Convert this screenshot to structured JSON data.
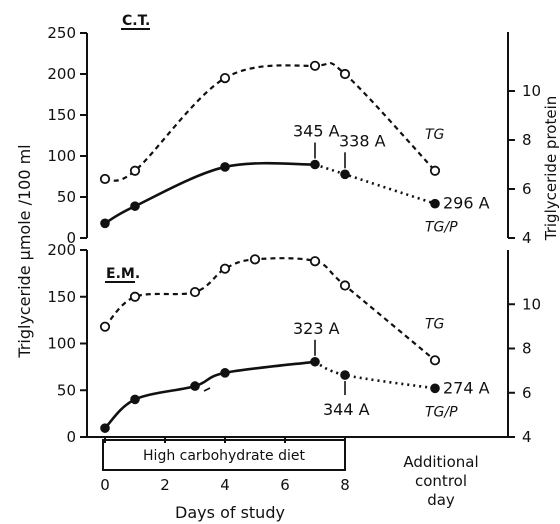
{
  "chart_data": [
    {
      "type": "line",
      "panel": "top",
      "title": "C.T.",
      "ylabel_left": "Triglyceride µmole /100 ml",
      "ylabel_right": "Triglyceride protein",
      "ylim_left": [
        0,
        250
      ],
      "yticks_left": [
        "0",
        "50",
        "100",
        "150",
        "200",
        "250"
      ],
      "ylim_right": [
        4,
        12
      ],
      "yticks_right": [
        "4",
        "6",
        "8",
        "10"
      ],
      "series": [
        {
          "name": "TG",
          "axis": "left",
          "style": "dashed-open-circles",
          "x": [
            0,
            1,
            4,
            7,
            8,
            11
          ],
          "y": [
            72,
            82,
            195,
            210,
            200,
            82
          ]
        },
        {
          "name": "TG/P",
          "axis": "right",
          "style": "solid-filled-circles",
          "x": [
            0,
            1,
            4,
            7,
            8,
            11
          ],
          "y": [
            4.6,
            5.3,
            6.9,
            7.0,
            6.6,
            5.4
          ]
        }
      ],
      "annotations": [
        {
          "text": "345 A",
          "x": 7
        },
        {
          "text": "338 A",
          "x": 8
        },
        {
          "text": "296 A",
          "x": 11
        }
      ]
    },
    {
      "type": "line",
      "panel": "bottom",
      "title": "E.M.",
      "xlabel": "Days of study",
      "xticks": [
        "0",
        "2",
        "4",
        "6",
        "8"
      ],
      "ylim_left": [
        0,
        200
      ],
      "yticks_left": [
        "0",
        "50",
        "100",
        "150",
        "200"
      ],
      "ylim_right": [
        4,
        12
      ],
      "yticks_right": [
        "4",
        "6",
        "8",
        "10"
      ],
      "series": [
        {
          "name": "TG",
          "axis": "left",
          "style": "dashed-open-circles",
          "x": [
            0,
            1,
            3,
            4,
            5,
            7,
            8,
            11
          ],
          "y": [
            118,
            150,
            155,
            180,
            190,
            188,
            162,
            82
          ]
        },
        {
          "name": "TG/P",
          "axis": "right",
          "style": "solid-filled-circles",
          "x": [
            0,
            1,
            3,
            4,
            7,
            8,
            11
          ],
          "y": [
            4.4,
            5.7,
            6.3,
            6.9,
            7.4,
            6.8,
            6.2
          ]
        }
      ],
      "annotations": [
        {
          "text": "323 A",
          "x": 7
        },
        {
          "text": "344 A",
          "x": 8
        },
        {
          "text": "274 A",
          "x": 11
        }
      ],
      "diet_label": "High carbohydrate diet",
      "additional_label": [
        "Additional",
        "control",
        "day"
      ]
    }
  ]
}
